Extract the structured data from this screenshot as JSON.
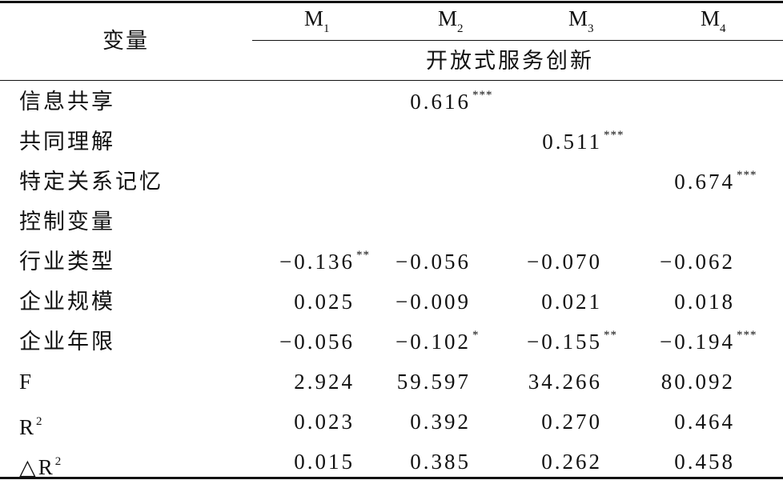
{
  "table": {
    "header": {
      "variable": "变量",
      "columns": [
        {
          "base": "M",
          "sub": "1"
        },
        {
          "base": "M",
          "sub": "2"
        },
        {
          "base": "M",
          "sub": "3"
        },
        {
          "base": "M",
          "sub": "4"
        }
      ],
      "dependent": "开放式服务创新"
    },
    "rows": [
      {
        "label": "信息共享",
        "cells": [
          null,
          {
            "value": "0.616",
            "sig": "***"
          },
          null,
          null
        ]
      },
      {
        "label": "共同理解",
        "cells": [
          null,
          null,
          {
            "value": "0.511",
            "sig": "***"
          },
          null
        ]
      },
      {
        "label": "特定关系记忆",
        "cells": [
          null,
          null,
          null,
          {
            "value": "0.674",
            "sig": "***"
          }
        ]
      },
      {
        "label": "控制变量",
        "cells": [
          null,
          null,
          null,
          null
        ]
      },
      {
        "label": "行业类型",
        "cells": [
          {
            "value": "−0.136",
            "sig": "**"
          },
          {
            "value": "−0.056"
          },
          {
            "value": "−0.070"
          },
          {
            "value": "−0.062"
          }
        ]
      },
      {
        "label": "企业规模",
        "cells": [
          {
            "value": "0.025"
          },
          {
            "value": "−0.009"
          },
          {
            "value": "0.021"
          },
          {
            "value": "0.018"
          }
        ]
      },
      {
        "label": "企业年限",
        "cells": [
          {
            "value": "−0.056"
          },
          {
            "value": "−0.102",
            "sig": "*"
          },
          {
            "value": "−0.155",
            "sig": "**"
          },
          {
            "value": "−0.194",
            "sig": "***"
          }
        ]
      },
      {
        "label": "F",
        "cells": [
          {
            "value": "2.924"
          },
          {
            "value": "59.597"
          },
          {
            "value": "34.266"
          },
          {
            "value": "80.092"
          }
        ]
      },
      {
        "label": "R",
        "sup": "2",
        "cells": [
          {
            "value": "0.023"
          },
          {
            "value": "0.392"
          },
          {
            "value": "0.270"
          },
          {
            "value": "0.464"
          }
        ]
      },
      {
        "label": "△R",
        "sup": "2",
        "cells": [
          {
            "value": "0.015"
          },
          {
            "value": "0.385"
          },
          {
            "value": "0.262"
          },
          {
            "value": "0.458"
          }
        ]
      }
    ]
  }
}
